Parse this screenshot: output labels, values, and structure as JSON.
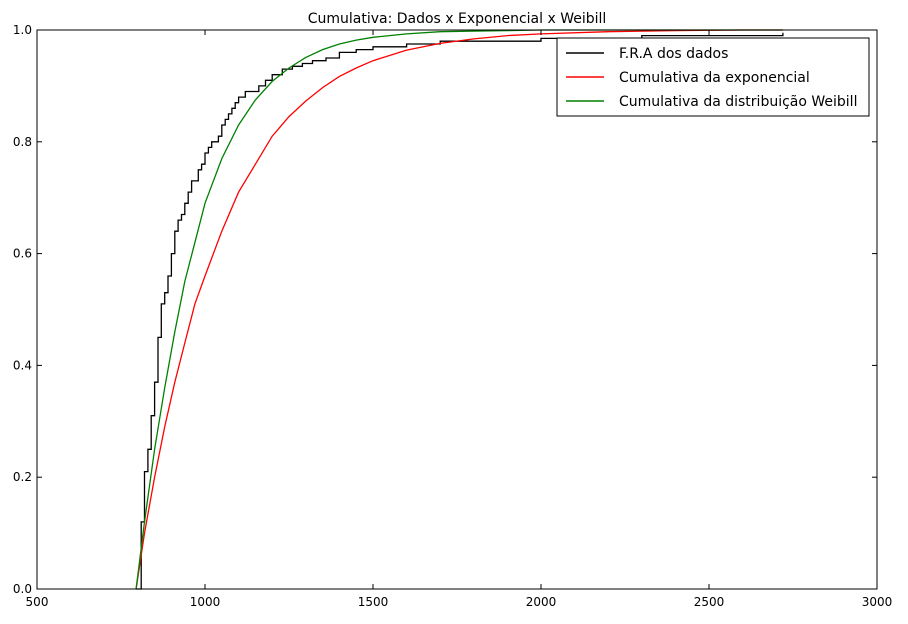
{
  "chart_data": {
    "type": "line",
    "title": "Cumulativa: Dados x Exponencial x Weibill",
    "xlabel": "",
    "ylabel": "",
    "xlim": [
      500,
      3000
    ],
    "ylim": [
      0,
      1.0
    ],
    "x_ticks": [
      500,
      1000,
      1500,
      2000,
      2500,
      3000
    ],
    "y_ticks": [
      0.0,
      0.2,
      0.4,
      0.6,
      0.8,
      1.0
    ],
    "x_tick_labels": [
      "500",
      "1000",
      "1500",
      "2000",
      "2500",
      "3000"
    ],
    "y_tick_labels": [
      "0.0",
      "0.2",
      "0.4",
      "0.6",
      "0.8",
      "1.0"
    ],
    "grid": false,
    "legend_position": "top-right",
    "series": [
      {
        "name": "F.R.A dos dados",
        "color": "#000000",
        "style": "step",
        "x": [
          795,
          810,
          820,
          830,
          840,
          850,
          860,
          870,
          880,
          890,
          900,
          910,
          920,
          930,
          940,
          950,
          960,
          970,
          980,
          990,
          1000,
          1010,
          1020,
          1030,
          1040,
          1050,
          1060,
          1070,
          1080,
          1090,
          1100,
          1120,
          1140,
          1160,
          1180,
          1200,
          1230,
          1260,
          1290,
          1320,
          1360,
          1400,
          1450,
          1500,
          1600,
          1700,
          2000,
          2300,
          2720
        ],
        "y": [
          0.0,
          0.12,
          0.21,
          0.25,
          0.31,
          0.37,
          0.45,
          0.51,
          0.53,
          0.56,
          0.6,
          0.64,
          0.66,
          0.67,
          0.69,
          0.71,
          0.73,
          0.73,
          0.75,
          0.76,
          0.78,
          0.79,
          0.8,
          0.8,
          0.81,
          0.83,
          0.84,
          0.85,
          0.86,
          0.87,
          0.88,
          0.89,
          0.89,
          0.9,
          0.91,
          0.92,
          0.93,
          0.935,
          0.94,
          0.945,
          0.95,
          0.96,
          0.965,
          0.97,
          0.975,
          0.98,
          0.985,
          0.99,
          0.995
        ]
      },
      {
        "name": "Cumulativa da exponencial",
        "color": "#ff0000",
        "style": "line",
        "x": [
          795,
          820,
          850,
          880,
          910,
          940,
          970,
          1000,
          1050,
          1100,
          1150,
          1200,
          1250,
          1300,
          1350,
          1400,
          1450,
          1500,
          1600,
          1700,
          1800,
          1900,
          2000,
          2200,
          2400,
          2600,
          2720
        ],
        "y": [
          0.0,
          0.1,
          0.2,
          0.29,
          0.37,
          0.44,
          0.51,
          0.56,
          0.64,
          0.71,
          0.76,
          0.81,
          0.845,
          0.873,
          0.897,
          0.917,
          0.932,
          0.945,
          0.964,
          0.976,
          0.984,
          0.99,
          0.993,
          0.997,
          0.999,
          1.0,
          1.0
        ]
      },
      {
        "name": "Cumulativa da distribuição Weibill",
        "color": "#008000",
        "style": "line",
        "x": [
          795,
          820,
          850,
          880,
          910,
          940,
          970,
          1000,
          1050,
          1100,
          1150,
          1200,
          1250,
          1300,
          1350,
          1400,
          1450,
          1500,
          1600,
          1700,
          1800,
          1900,
          2000,
          2200,
          2400,
          2600,
          2720
        ],
        "y": [
          0.0,
          0.12,
          0.25,
          0.36,
          0.46,
          0.55,
          0.62,
          0.69,
          0.77,
          0.83,
          0.875,
          0.908,
          0.932,
          0.951,
          0.965,
          0.975,
          0.982,
          0.987,
          0.993,
          0.997,
          0.998,
          0.999,
          1.0,
          1.0,
          1.0,
          1.0,
          1.0
        ]
      }
    ]
  }
}
